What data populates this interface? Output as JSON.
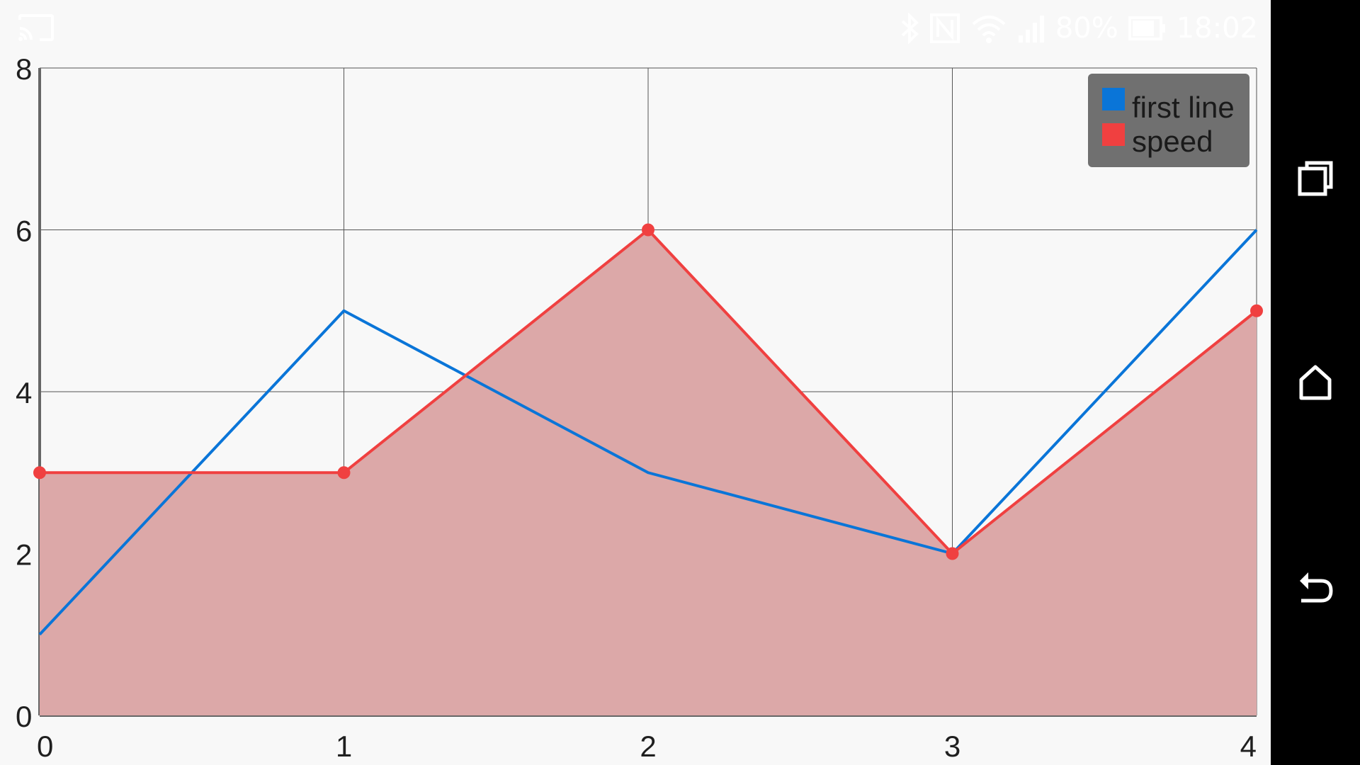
{
  "status_bar": {
    "battery": "80%",
    "time": "18:02",
    "icons": [
      "cast-icon",
      "bluetooth-icon",
      "nfc-icon",
      "wifi-icon",
      "signal-icon",
      "battery-icon"
    ]
  },
  "nav_bar": {
    "icons": [
      "recent-apps-icon",
      "home-icon",
      "back-icon"
    ]
  },
  "chart_data": {
    "type": "line",
    "x": [
      0,
      1,
      2,
      3,
      4
    ],
    "xlim": [
      0,
      4
    ],
    "ylim": [
      0,
      8
    ],
    "x_ticks": [
      "0",
      "1",
      "2",
      "3",
      "4"
    ],
    "y_ticks": [
      "0",
      "2",
      "4",
      "6",
      "8"
    ],
    "grid": true,
    "legend_position": "top-right",
    "series": [
      {
        "name": "first line",
        "values": [
          1,
          5,
          3,
          2,
          6
        ],
        "color": "#0a75d8",
        "markers": false,
        "fill": false
      },
      {
        "name": "speed",
        "values": [
          3,
          3,
          6,
          2,
          5
        ],
        "color": "#f04040",
        "markers": true,
        "fill": true,
        "fill_color": "#dca8a8"
      }
    ]
  }
}
